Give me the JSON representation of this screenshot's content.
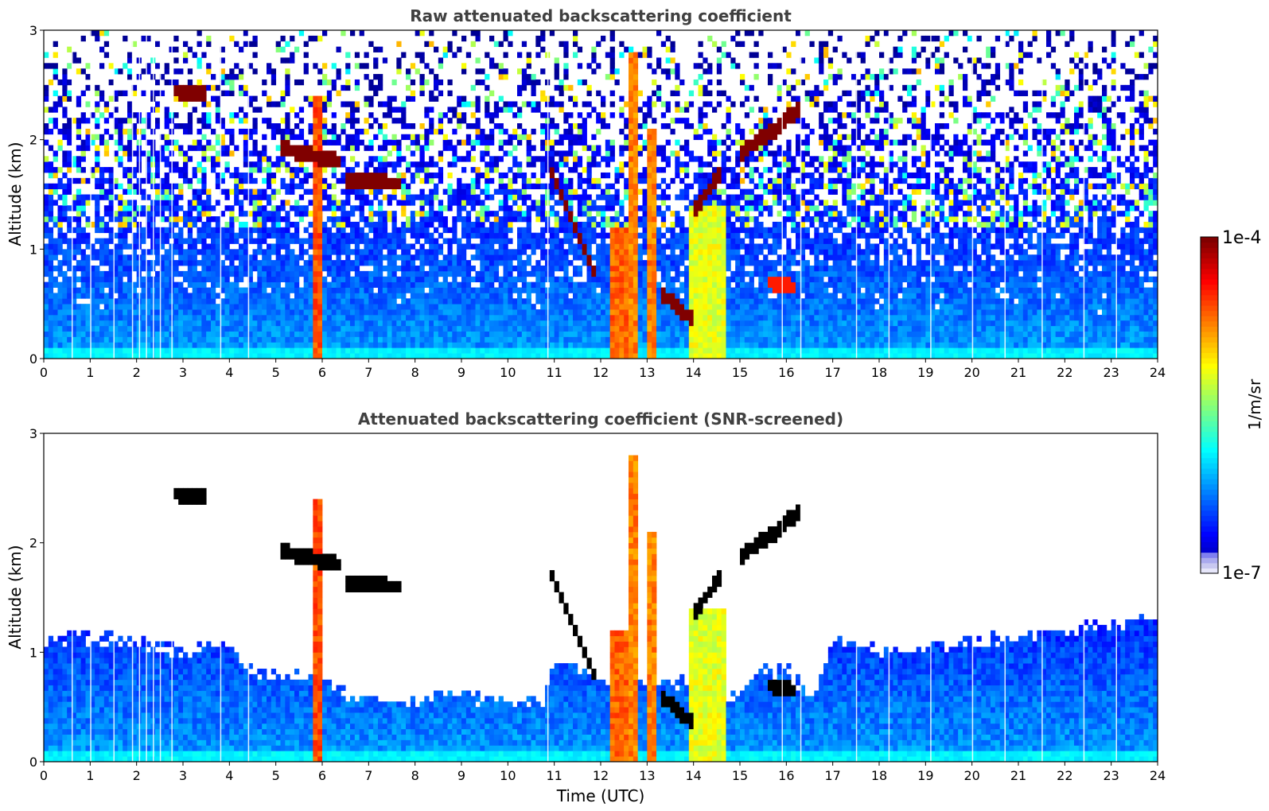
{
  "chart_data": [
    {
      "type": "heatmap",
      "title": "Raw attenuated backscattering coefficient",
      "xlabel": "",
      "ylabel": "Altitude (km)",
      "xlim": [
        0,
        24
      ],
      "ylim": [
        0,
        3
      ],
      "x_ticks": [
        0,
        1,
        2,
        3,
        4,
        5,
        6,
        7,
        8,
        9,
        10,
        11,
        12,
        13,
        14,
        15,
        16,
        17,
        18,
        19,
        20,
        21,
        22,
        23,
        24
      ],
      "y_ticks": [
        0,
        1,
        2,
        3
      ],
      "screened": false,
      "features": [
        {
          "kind": "cloud",
          "t_start": 2.8,
          "t_end": 3.5,
          "alt_start": 2.45,
          "alt_end": 2.42,
          "intensity": 1.0
        },
        {
          "kind": "cloud",
          "t_start": 5.1,
          "t_end": 6.4,
          "alt_start": 1.92,
          "alt_end": 1.8,
          "intensity": 1.0
        },
        {
          "kind": "cloud",
          "t_start": 6.5,
          "t_end": 7.7,
          "alt_start": 1.62,
          "alt_end": 1.6,
          "intensity": 1.0
        },
        {
          "kind": "cloud",
          "t_start": 10.9,
          "t_end": 11.9,
          "alt_start": 1.75,
          "alt_end": 0.75,
          "intensity": 1.0
        },
        {
          "kind": "cloud",
          "t_start": 13.3,
          "t_end": 14.0,
          "alt_start": 0.6,
          "alt_end": 0.35,
          "intensity": 1.0
        },
        {
          "kind": "cloud",
          "t_start": 14.0,
          "t_end": 14.6,
          "alt_start": 1.35,
          "alt_end": 1.7,
          "intensity": 1.0
        },
        {
          "kind": "cloud",
          "t_start": 15.0,
          "t_end": 15.5,
          "alt_start": 1.85,
          "alt_end": 2.05,
          "intensity": 1.0
        },
        {
          "kind": "cloud",
          "t_start": 15.5,
          "t_end": 16.3,
          "alt_start": 2.0,
          "alt_end": 2.3,
          "intensity": 1.0
        },
        {
          "kind": "cloud",
          "t_start": 15.6,
          "t_end": 16.2,
          "alt_start": 0.7,
          "alt_end": 0.65,
          "intensity": 0.85
        },
        {
          "kind": "column",
          "t_start": 5.85,
          "t_end": 5.95,
          "alt_top": 2.4,
          "intensity": 0.8
        },
        {
          "kind": "column",
          "t_start": 12.2,
          "t_end": 12.6,
          "alt_top": 1.2,
          "intensity": 0.78
        },
        {
          "kind": "column",
          "t_start": 12.6,
          "t_end": 12.8,
          "alt_top": 2.8,
          "intensity": 0.75
        },
        {
          "kind": "column",
          "t_start": 13.0,
          "t_end": 13.2,
          "alt_top": 2.1,
          "intensity": 0.75
        },
        {
          "kind": "column",
          "t_start": 13.9,
          "t_end": 14.7,
          "alt_top": 1.4,
          "intensity": 0.6
        }
      ]
    },
    {
      "type": "heatmap",
      "title": "Attenuated backscattering coefficient (SNR-screened)",
      "xlabel": "Time (UTC)",
      "ylabel": "Altitude (km)",
      "xlim": [
        0,
        24
      ],
      "ylim": [
        0,
        3
      ],
      "x_ticks": [
        0,
        1,
        2,
        3,
        4,
        5,
        6,
        7,
        8,
        9,
        10,
        11,
        12,
        13,
        14,
        15,
        16,
        17,
        18,
        19,
        20,
        21,
        22,
        23,
        24
      ],
      "y_ticks": [
        0,
        1,
        2,
        3
      ],
      "screened": true,
      "cloud_color": "#000000",
      "boundary_layer_top_km": [
        [
          0,
          1.1
        ],
        [
          1,
          1.15
        ],
        [
          2,
          1.1
        ],
        [
          3,
          1.0
        ],
        [
          4,
          1.1
        ],
        [
          4.3,
          0.85
        ],
        [
          5,
          0.8
        ],
        [
          5.5,
          0.75
        ],
        [
          6,
          0.75
        ],
        [
          6.5,
          0.6
        ],
        [
          7,
          0.55
        ],
        [
          8,
          0.55
        ],
        [
          9,
          0.6
        ],
        [
          10,
          0.55
        ],
        [
          10.8,
          0.55
        ],
        [
          11,
          0.95
        ],
        [
          11.5,
          0.9
        ],
        [
          12,
          0.75
        ],
        [
          13,
          0.75
        ],
        [
          14,
          0.7
        ],
        [
          14.7,
          0.55
        ],
        [
          15,
          0.6
        ],
        [
          15.5,
          0.8
        ],
        [
          16,
          0.85
        ],
        [
          16.6,
          0.6
        ],
        [
          17,
          1.1
        ],
        [
          18,
          1.0
        ],
        [
          19,
          1.05
        ],
        [
          20,
          1.1
        ],
        [
          21,
          1.15
        ],
        [
          22,
          1.2
        ],
        [
          23,
          1.25
        ],
        [
          24,
          1.3
        ]
      ]
    }
  ],
  "colorbar": {
    "label": "1/m/sr",
    "max_label": "1e-4",
    "min_label": "1e-7",
    "colormap": "jet",
    "colors": [
      "#e6e6fa",
      "#0000cd",
      "#0000ff",
      "#0080ff",
      "#00ffff",
      "#80ff80",
      "#ffff00",
      "#ff8000",
      "#ff0000",
      "#800000"
    ]
  }
}
